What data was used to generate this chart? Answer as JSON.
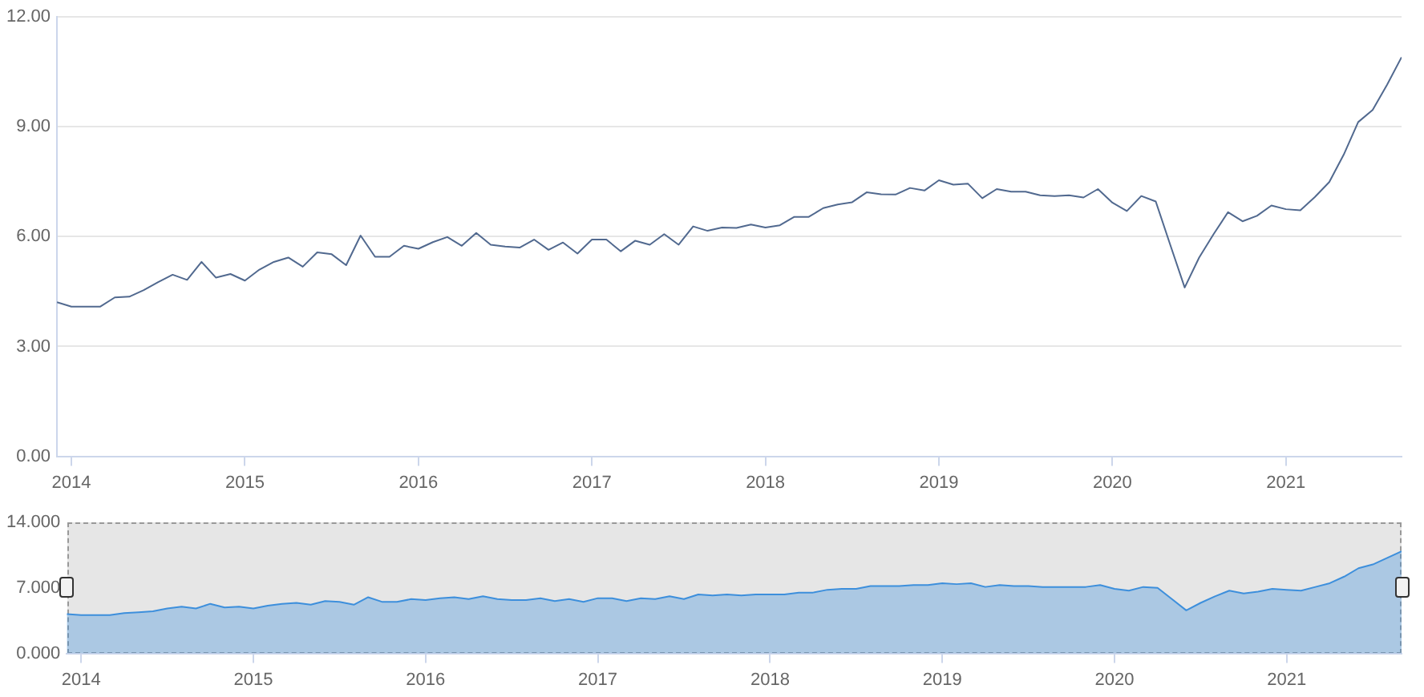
{
  "chart_data": [
    {
      "type": "line",
      "color": "#51698f",
      "x": [
        "2013-12",
        "2014-01",
        "2014-02",
        "2014-03",
        "2014-04",
        "2014-05",
        "2014-06",
        "2014-07",
        "2014-08",
        "2014-09",
        "2014-10",
        "2014-11",
        "2014-12",
        "2015-01",
        "2015-02",
        "2015-03",
        "2015-04",
        "2015-05",
        "2015-06",
        "2015-07",
        "2015-08",
        "2015-09",
        "2015-10",
        "2015-11",
        "2015-12",
        "2016-01",
        "2016-02",
        "2016-03",
        "2016-04",
        "2016-05",
        "2016-06",
        "2016-07",
        "2016-08",
        "2016-09",
        "2016-10",
        "2016-11",
        "2016-12",
        "2017-01",
        "2017-02",
        "2017-03",
        "2017-04",
        "2017-05",
        "2017-06",
        "2017-07",
        "2017-08",
        "2017-09",
        "2017-10",
        "2017-11",
        "2017-12",
        "2018-01",
        "2018-02",
        "2018-03",
        "2018-04",
        "2018-05",
        "2018-06",
        "2018-07",
        "2018-08",
        "2018-09",
        "2018-10",
        "2018-11",
        "2018-12",
        "2019-01",
        "2019-02",
        "2019-03",
        "2019-04",
        "2019-05",
        "2019-06",
        "2019-07",
        "2019-08",
        "2019-09",
        "2019-10",
        "2019-11",
        "2019-12",
        "2020-01",
        "2020-02",
        "2020-03",
        "2020-04",
        "2020-05",
        "2020-06",
        "2020-07",
        "2020-08",
        "2020-09",
        "2020-10",
        "2020-11",
        "2020-12",
        "2021-01",
        "2021-02",
        "2021-03",
        "2021-04",
        "2021-05",
        "2021-06",
        "2021-07",
        "2021-08",
        "2021-09"
      ],
      "values": [
        4.21,
        4.09,
        4.09,
        4.09,
        4.34,
        4.36,
        4.54,
        4.76,
        4.96,
        4.82,
        5.31,
        4.88,
        4.98,
        4.8,
        5.1,
        5.31,
        5.43,
        5.18,
        5.57,
        5.52,
        5.22,
        6.03,
        5.45,
        5.45,
        5.75,
        5.67,
        5.85,
        5.99,
        5.75,
        6.1,
        5.78,
        5.73,
        5.7,
        5.92,
        5.64,
        5.84,
        5.54,
        5.92,
        5.92,
        5.6,
        5.89,
        5.78,
        6.07,
        5.78,
        6.28,
        6.16,
        6.25,
        6.24,
        6.33,
        6.25,
        6.31,
        6.54,
        6.54,
        6.78,
        6.88,
        6.94,
        7.21,
        7.16,
        7.15,
        7.33,
        7.26,
        7.54,
        7.42,
        7.45,
        7.05,
        7.3,
        7.23,
        7.23,
        7.13,
        7.11,
        7.13,
        7.07,
        7.3,
        6.93,
        6.7,
        7.11,
        6.96,
        5.78,
        4.61,
        5.43,
        6.07,
        6.67,
        6.42,
        6.57,
        6.85,
        6.75,
        6.72,
        7.08,
        7.49,
        8.24,
        9.13,
        9.46,
        10.15,
        10.9
      ],
      "xlim": [
        "2013-12",
        "2021-09"
      ],
      "xticks": [
        "2014",
        "2015",
        "2016",
        "2017",
        "2018",
        "2019",
        "2020",
        "2021"
      ],
      "ylim": [
        0,
        12
      ],
      "yticks": [
        {
          "value": 0,
          "label": "0.00"
        },
        {
          "value": 3,
          "label": "3.00"
        },
        {
          "value": 6,
          "label": "6.00"
        },
        {
          "value": 9,
          "label": "9.00"
        },
        {
          "value": 12,
          "label": "12.00"
        }
      ],
      "grid": "y",
      "legend": false,
      "marker": "none"
    },
    {
      "type": "area",
      "color": "#3d8fdc",
      "x": [
        "2013-12",
        "2014-01",
        "2014-02",
        "2014-03",
        "2014-04",
        "2014-05",
        "2014-06",
        "2014-07",
        "2014-08",
        "2014-09",
        "2014-10",
        "2014-11",
        "2014-12",
        "2015-01",
        "2015-02",
        "2015-03",
        "2015-04",
        "2015-05",
        "2015-06",
        "2015-07",
        "2015-08",
        "2015-09",
        "2015-10",
        "2015-11",
        "2015-12",
        "2016-01",
        "2016-02",
        "2016-03",
        "2016-04",
        "2016-05",
        "2016-06",
        "2016-07",
        "2016-08",
        "2016-09",
        "2016-10",
        "2016-11",
        "2016-12",
        "2017-01",
        "2017-02",
        "2017-03",
        "2017-04",
        "2017-05",
        "2017-06",
        "2017-07",
        "2017-08",
        "2017-09",
        "2017-10",
        "2017-11",
        "2017-12",
        "2018-01",
        "2018-02",
        "2018-03",
        "2018-04",
        "2018-05",
        "2018-06",
        "2018-07",
        "2018-08",
        "2018-09",
        "2018-10",
        "2018-11",
        "2018-12",
        "2019-01",
        "2019-02",
        "2019-03",
        "2019-04",
        "2019-05",
        "2019-06",
        "2019-07",
        "2019-08",
        "2019-09",
        "2019-10",
        "2019-11",
        "2019-12",
        "2020-01",
        "2020-02",
        "2020-03",
        "2020-04",
        "2020-05",
        "2020-06",
        "2020-07",
        "2020-08",
        "2020-09",
        "2020-10",
        "2020-11",
        "2020-12",
        "2021-01",
        "2021-02",
        "2021-03",
        "2021-04",
        "2021-05",
        "2021-06",
        "2021-07",
        "2021-08",
        "2021-09"
      ],
      "values": [
        4.2,
        4.1,
        4.1,
        4.1,
        4.3,
        4.4,
        4.5,
        4.8,
        5.0,
        4.8,
        5.3,
        4.9,
        5.0,
        4.8,
        5.1,
        5.3,
        5.4,
        5.2,
        5.6,
        5.5,
        5.2,
        6.0,
        5.5,
        5.5,
        5.8,
        5.7,
        5.9,
        6.0,
        5.8,
        6.1,
        5.8,
        5.7,
        5.7,
        5.9,
        5.6,
        5.8,
        5.5,
        5.9,
        5.9,
        5.6,
        5.9,
        5.8,
        6.1,
        5.8,
        6.3,
        6.2,
        6.3,
        6.2,
        6.3,
        6.3,
        6.3,
        6.5,
        6.5,
        6.8,
        6.9,
        6.9,
        7.2,
        7.2,
        7.2,
        7.3,
        7.3,
        7.5,
        7.4,
        7.5,
        7.1,
        7.3,
        7.2,
        7.2,
        7.1,
        7.1,
        7.1,
        7.1,
        7.3,
        6.9,
        6.7,
        7.1,
        7.0,
        5.8,
        4.6,
        5.4,
        6.1,
        6.7,
        6.4,
        6.6,
        6.9,
        6.8,
        6.7,
        7.1,
        7.5,
        8.2,
        9.1,
        9.5,
        10.2,
        10.9
      ],
      "xlim": [
        "2013-12",
        "2021-09"
      ],
      "xticks": [
        "2014",
        "2015",
        "2016",
        "2017",
        "2018",
        "2019",
        "2020",
        "2021"
      ],
      "ylim": [
        0,
        14
      ],
      "yticks": [
        {
          "value": 0,
          "label": "0.000"
        },
        {
          "value": 7,
          "label": "7.000"
        },
        {
          "value": 14,
          "label": "14.000"
        }
      ],
      "legend": false,
      "marker": "none"
    }
  ]
}
